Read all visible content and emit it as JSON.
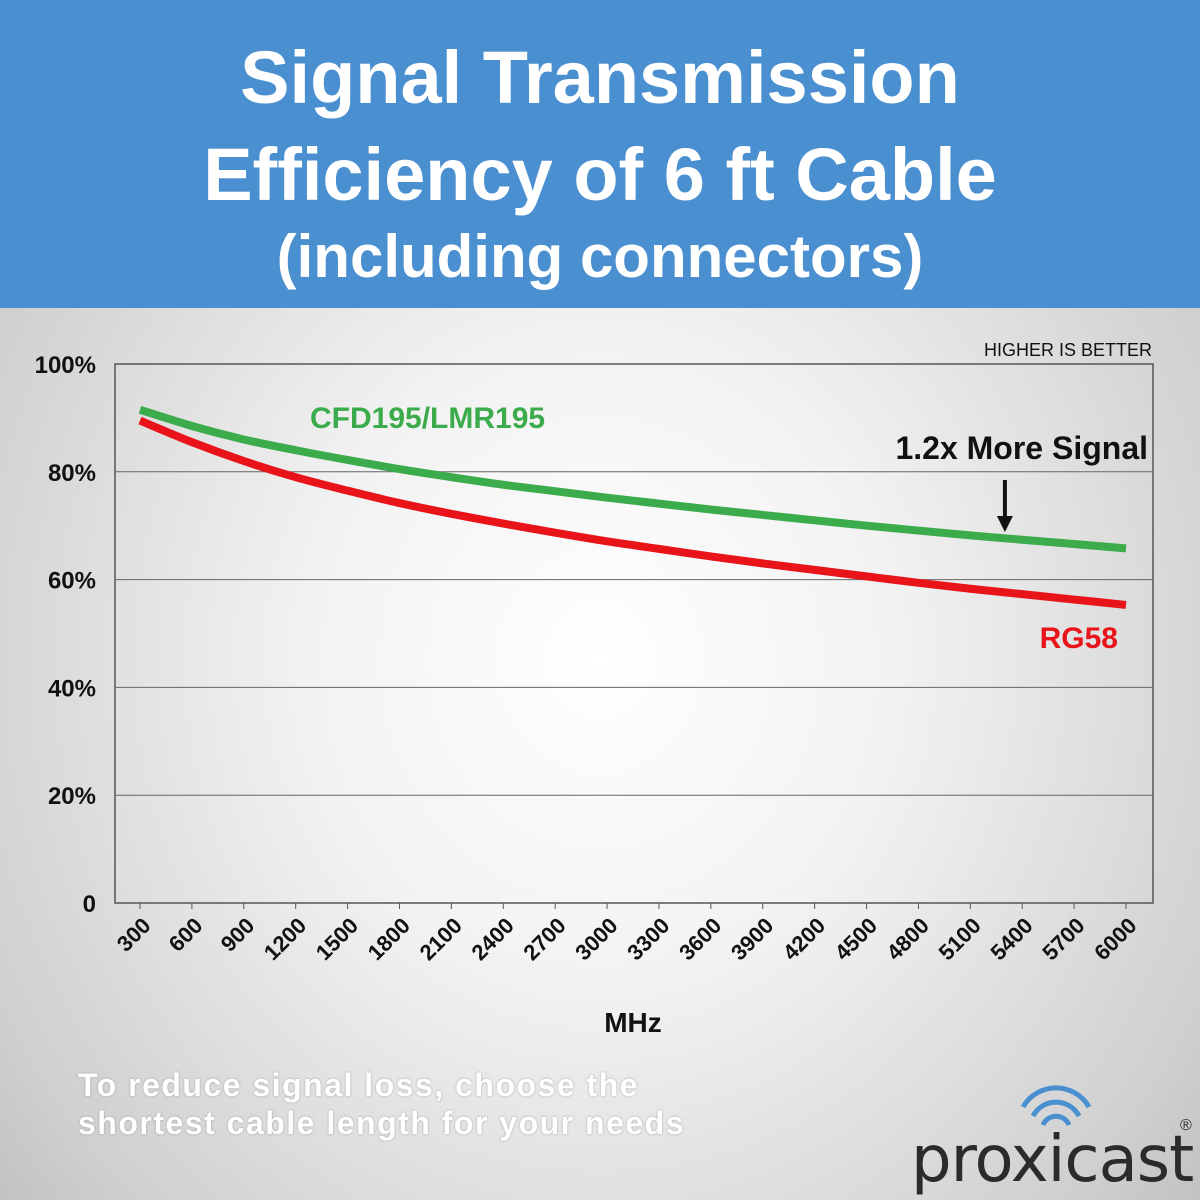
{
  "header": {
    "line1": "Signal Transmission",
    "line2": "Efficiency of 6 ft Cable",
    "line3": "(including connectors)"
  },
  "chart_data": {
    "type": "line",
    "title": "Signal Transmission Efficiency of 6 ft Cable (including connectors)",
    "xlabel": "MHz",
    "ylabel": "",
    "x": [
      300,
      600,
      900,
      1200,
      1500,
      1800,
      2100,
      2400,
      2700,
      3000,
      3300,
      3600,
      3900,
      4200,
      4500,
      4800,
      5100,
      5400,
      5700,
      6000
    ],
    "xticks": [
      "300",
      "600",
      "900",
      "1200",
      "1500",
      "1800",
      "2100",
      "2400",
      "2700",
      "3000",
      "3300",
      "3600",
      "3900",
      "4200",
      "4500",
      "4800",
      "5100",
      "5400",
      "5700",
      "6000"
    ],
    "yticks": [
      "0",
      "20%",
      "40%",
      "60%",
      "80%",
      "100%"
    ],
    "ylim": [
      0,
      100
    ],
    "grid": true,
    "series": [
      {
        "name": "CFD195/LMR195",
        "color": "#3cab4c",
        "values": [
          91.5,
          88.5,
          86.0,
          84.0,
          82.2,
          80.5,
          79.0,
          77.6,
          76.4,
          75.2,
          74.1,
          73.0,
          72.0,
          71.0,
          70.0,
          69.1,
          68.2,
          67.4,
          66.6,
          65.8
        ]
      },
      {
        "name": "RG58",
        "color": "#e8141a",
        "values": [
          89.5,
          85.5,
          82.0,
          79.0,
          76.5,
          74.2,
          72.2,
          70.4,
          68.7,
          67.1,
          65.7,
          64.3,
          63.0,
          61.8,
          60.6,
          59.4,
          58.3,
          57.3,
          56.3,
          55.3
        ]
      }
    ],
    "annotations": {
      "corner_note": "HIGHER IS BETTER",
      "callout": "1.2x More Signal",
      "callout_x": 5300
    }
  },
  "footer": {
    "line1": "To reduce signal loss, choose the",
    "line2": "shortest cable length for your needs"
  },
  "logo": {
    "name": "proxicast",
    "mark": "®",
    "icon": "wifi-signal-icon",
    "icon_color": "#4a8fd0"
  }
}
